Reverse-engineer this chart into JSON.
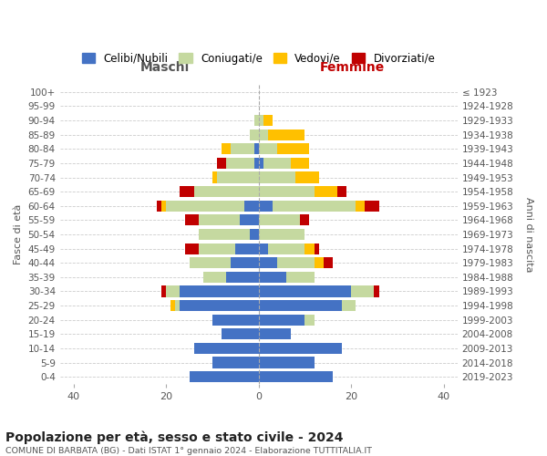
{
  "age_groups": [
    "0-4",
    "5-9",
    "10-14",
    "15-19",
    "20-24",
    "25-29",
    "30-34",
    "35-39",
    "40-44",
    "45-49",
    "50-54",
    "55-59",
    "60-64",
    "65-69",
    "70-74",
    "75-79",
    "80-84",
    "85-89",
    "90-94",
    "95-99",
    "100+"
  ],
  "birth_years": [
    "2019-2023",
    "2014-2018",
    "2009-2013",
    "2004-2008",
    "1999-2003",
    "1994-1998",
    "1989-1993",
    "1984-1988",
    "1979-1983",
    "1974-1978",
    "1969-1973",
    "1964-1968",
    "1959-1963",
    "1954-1958",
    "1949-1953",
    "1944-1948",
    "1939-1943",
    "1934-1938",
    "1929-1933",
    "1924-1928",
    "≤ 1923"
  ],
  "maschi": {
    "celibi": [
      15,
      10,
      14,
      8,
      10,
      17,
      17,
      7,
      6,
      5,
      2,
      4,
      3,
      0,
      0,
      1,
      1,
      0,
      0,
      0,
      0
    ],
    "coniugati": [
      0,
      0,
      0,
      0,
      0,
      1,
      3,
      5,
      9,
      8,
      11,
      9,
      17,
      14,
      9,
      6,
      5,
      2,
      1,
      0,
      0
    ],
    "vedovi": [
      0,
      0,
      0,
      0,
      0,
      1,
      0,
      0,
      0,
      0,
      0,
      0,
      1,
      0,
      1,
      0,
      2,
      0,
      0,
      0,
      0
    ],
    "divorziati": [
      0,
      0,
      0,
      0,
      0,
      0,
      1,
      0,
      0,
      3,
      0,
      3,
      1,
      3,
      0,
      2,
      0,
      0,
      0,
      0,
      0
    ]
  },
  "femmine": {
    "nubili": [
      16,
      12,
      18,
      7,
      10,
      18,
      20,
      6,
      4,
      2,
      0,
      0,
      3,
      0,
      0,
      1,
      0,
      0,
      0,
      0,
      0
    ],
    "coniugate": [
      0,
      0,
      0,
      0,
      2,
      3,
      5,
      6,
      8,
      8,
      10,
      9,
      18,
      12,
      8,
      6,
      4,
      2,
      1,
      0,
      0
    ],
    "vedove": [
      0,
      0,
      0,
      0,
      0,
      0,
      0,
      0,
      2,
      2,
      0,
      0,
      2,
      5,
      5,
      4,
      7,
      8,
      2,
      0,
      0
    ],
    "divorziate": [
      0,
      0,
      0,
      0,
      0,
      0,
      1,
      0,
      2,
      1,
      0,
      2,
      3,
      2,
      0,
      0,
      0,
      0,
      0,
      0,
      0
    ]
  },
  "colors": {
    "celibi_nubili": "#4472c4",
    "coniugati": "#c5d9a0",
    "vedovi": "#ffc000",
    "divorziati": "#c00000"
  },
  "xlim": 43,
  "title": "Popolazione per età, sesso e stato civile - 2024",
  "subtitle": "COMUNE DI BARBATA (BG) - Dati ISTAT 1° gennaio 2024 - Elaborazione TUTTITALIA.IT",
  "ylabel_left": "Fasce di età",
  "ylabel_right": "Anni di nascita",
  "xlabel_left": "Maschi",
  "xlabel_right": "Femmine",
  "legend_labels": [
    "Celibi/Nubili",
    "Coniugati/e",
    "Vedovi/e",
    "Divorziati/e"
  ],
  "bg_color": "#ffffff",
  "grid_color": "#cccccc"
}
